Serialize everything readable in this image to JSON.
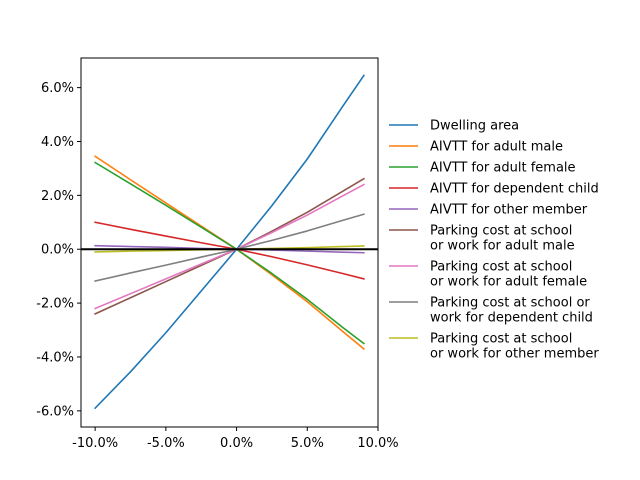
{
  "chart_data": {
    "type": "line",
    "title": "",
    "xlabel": "",
    "ylabel": "",
    "xlim": [
      -11,
      10
    ],
    "ylim": [
      -6.6,
      7.1
    ],
    "x": [
      -10,
      -7.5,
      -5,
      -2.5,
      0,
      2.5,
      5,
      7.5,
      9
    ],
    "xticks": [
      {
        "value": -10,
        "label": "-10.0%"
      },
      {
        "value": -5,
        "label": "-5.0%"
      },
      {
        "value": 0,
        "label": "0.0%"
      },
      {
        "value": 5,
        "label": "5.0%"
      },
      {
        "value": 10,
        "label": "10.0%"
      }
    ],
    "yticks": [
      {
        "value": -6,
        "label": "-6.0%"
      },
      {
        "value": -4,
        "label": "-4.0%"
      },
      {
        "value": -2,
        "label": "-2.0%"
      },
      {
        "value": 0,
        "label": "0.0%"
      },
      {
        "value": 2,
        "label": "2.0%"
      },
      {
        "value": 4,
        "label": "4.0%"
      },
      {
        "value": 6,
        "label": "6.0%"
      }
    ],
    "zero_line": true,
    "grid": false,
    "legend_position": "right",
    "series": [
      {
        "name": "Dwelling area",
        "color": "#1f77b4",
        "values": [
          -5.9,
          -4.55,
          -3.1,
          -1.55,
          0,
          1.62,
          3.35,
          5.3,
          6.45
        ]
      },
      {
        "name": "AIVTT for adult male",
        "color": "#ff7f0e",
        "values": [
          3.45,
          2.58,
          1.72,
          0.86,
          0,
          -0.95,
          -1.95,
          -3.05,
          -3.7
        ]
      },
      {
        "name": "AIVTT for adult female",
        "color": "#2ca02c",
        "values": [
          3.22,
          2.43,
          1.63,
          0.82,
          0,
          -0.9,
          -1.86,
          -2.9,
          -3.5
        ]
      },
      {
        "name": "AIVTT for dependent child",
        "color": "#d62728",
        "values": [
          1.0,
          0.74,
          0.49,
          0.24,
          0,
          -0.28,
          -0.58,
          -0.9,
          -1.1
        ]
      },
      {
        "name": "AIVTT for other member",
        "color": "#9467bd",
        "values": [
          0.13,
          0.1,
          0.07,
          0.03,
          0,
          -0.03,
          -0.07,
          -0.11,
          -0.13
        ]
      },
      {
        "name": "Parking cost at school\nor work for adult male",
        "color": "#8c564b",
        "values": [
          -2.4,
          -1.8,
          -1.2,
          -0.6,
          0,
          0.67,
          1.37,
          2.15,
          2.62
        ]
      },
      {
        "name": "Parking cost at school\nor work for adult female",
        "color": "#e377c2",
        "values": [
          -2.2,
          -1.65,
          -1.1,
          -0.55,
          0,
          0.62,
          1.27,
          1.98,
          2.4
        ]
      },
      {
        "name": "Parking cost at school or\nwork for dependent child",
        "color": "#7f7f7f",
        "values": [
          -1.18,
          -0.88,
          -0.59,
          -0.29,
          0,
          0.33,
          0.68,
          1.07,
          1.3
        ]
      },
      {
        "name": "Parking cost at school\nor work for other member",
        "color": "#bcbd22",
        "values": [
          -0.1,
          -0.07,
          -0.05,
          -0.02,
          0,
          0.03,
          0.06,
          0.1,
          0.12
        ]
      }
    ]
  }
}
